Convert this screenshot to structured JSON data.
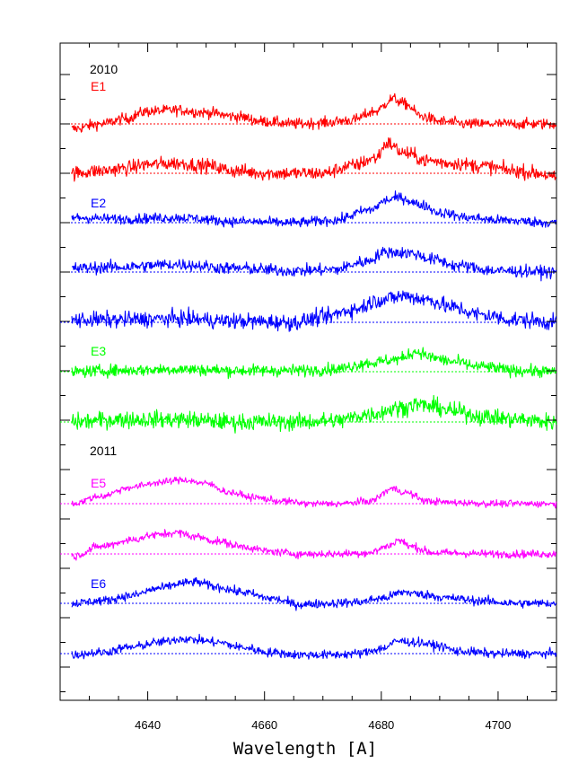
{
  "chart_data": {
    "type": "line",
    "title": "",
    "xlabel": "Wavelength [A]",
    "ylabel": "",
    "xlim": [
      4625,
      4710
    ],
    "x_ticks": [
      4640,
      4660,
      4680,
      4700
    ],
    "grid": false,
    "legend": "none",
    "annotations": [
      {
        "text": "2010",
        "color": "#000000"
      },
      {
        "text": "E1",
        "color": "#ff0000"
      },
      {
        "text": "E2",
        "color": "#0000ff"
      },
      {
        "text": "E3",
        "color": "#00ff00"
      },
      {
        "text": "2011",
        "color": "#000000"
      },
      {
        "text": "E5",
        "color": "#ff00ff"
      },
      {
        "text": "E6",
        "color": "#0000ff"
      }
    ],
    "series": [
      {
        "color": "#ff0000",
        "noise": 0.22,
        "points": [
          [
            4627,
            -0.2
          ],
          [
            4632,
            0.0
          ],
          [
            4636,
            0.2
          ],
          [
            4640,
            0.5
          ],
          [
            4645,
            0.55
          ],
          [
            4650,
            0.45
          ],
          [
            4655,
            0.3
          ],
          [
            4660,
            0.1
          ],
          [
            4665,
            0.0
          ],
          [
            4670,
            0.05
          ],
          [
            4675,
            0.15
          ],
          [
            4679,
            0.5
          ],
          [
            4682,
            1.0
          ],
          [
            4684,
            0.8
          ],
          [
            4687,
            0.3
          ],
          [
            4690,
            0.1
          ],
          [
            4695,
            0.0
          ],
          [
            4700,
            0.0
          ],
          [
            4705,
            0.0
          ],
          [
            4710,
            0.0
          ]
        ]
      },
      {
        "color": "#ff0000",
        "noise": 0.28,
        "points": [
          [
            4627,
            0.0
          ],
          [
            4632,
            0.1
          ],
          [
            4636,
            0.2
          ],
          [
            4640,
            0.35
          ],
          [
            4645,
            0.4
          ],
          [
            4650,
            0.3
          ],
          [
            4655,
            0.1
          ],
          [
            4660,
            0.0
          ],
          [
            4665,
            0.0
          ],
          [
            4670,
            0.0
          ],
          [
            4675,
            0.3
          ],
          [
            4679,
            0.6
          ],
          [
            4681,
            1.2
          ],
          [
            4684,
            0.8
          ],
          [
            4688,
            0.5
          ],
          [
            4692,
            0.4
          ],
          [
            4697,
            0.3
          ],
          [
            4703,
            0.1
          ],
          [
            4707,
            0.0
          ],
          [
            4710,
            -0.2
          ]
        ]
      },
      {
        "color": "#0000ff",
        "noise": 0.2,
        "points": [
          [
            4627,
            0.2
          ],
          [
            4635,
            0.15
          ],
          [
            4645,
            0.2
          ],
          [
            4655,
            0.05
          ],
          [
            4665,
            0.0
          ],
          [
            4672,
            0.1
          ],
          [
            4678,
            0.5
          ],
          [
            4681,
            0.9
          ],
          [
            4683,
            1.0
          ],
          [
            4687,
            0.7
          ],
          [
            4690,
            0.4
          ],
          [
            4695,
            0.2
          ],
          [
            4700,
            0.1
          ],
          [
            4710,
            0.0
          ]
        ]
      },
      {
        "color": "#0000ff",
        "noise": 0.24,
        "points": [
          [
            4627,
            0.15
          ],
          [
            4635,
            0.2
          ],
          [
            4645,
            0.3
          ],
          [
            4655,
            0.15
          ],
          [
            4665,
            0.05
          ],
          [
            4672,
            0.1
          ],
          [
            4677,
            0.4
          ],
          [
            4681,
            0.8
          ],
          [
            4685,
            0.75
          ],
          [
            4689,
            0.5
          ],
          [
            4693,
            0.25
          ],
          [
            4700,
            0.05
          ],
          [
            4710,
            0.0
          ]
        ]
      },
      {
        "color": "#0000ff",
        "noise": 0.32,
        "points": [
          [
            4627,
            0.1
          ],
          [
            4635,
            0.1
          ],
          [
            4645,
            0.15
          ],
          [
            4655,
            0.05
          ],
          [
            4665,
            0.0
          ],
          [
            4670,
            0.2
          ],
          [
            4675,
            0.5
          ],
          [
            4680,
            0.9
          ],
          [
            4684,
            1.05
          ],
          [
            4688,
            0.9
          ],
          [
            4692,
            0.6
          ],
          [
            4697,
            0.3
          ],
          [
            4703,
            0.1
          ],
          [
            4710,
            0.0
          ]
        ]
      },
      {
        "color": "#00ff00",
        "noise": 0.24,
        "points": [
          [
            4627,
            0.0
          ],
          [
            4635,
            0.05
          ],
          [
            4645,
            0.1
          ],
          [
            4655,
            0.05
          ],
          [
            4665,
            0.05
          ],
          [
            4672,
            0.1
          ],
          [
            4678,
            0.35
          ],
          [
            4683,
            0.5
          ],
          [
            4686,
            0.8
          ],
          [
            4689,
            0.55
          ],
          [
            4692,
            0.4
          ],
          [
            4697,
            0.2
          ],
          [
            4703,
            0.05
          ],
          [
            4710,
            0.0
          ]
        ]
      },
      {
        "color": "#00ff00",
        "noise": 0.34,
        "points": [
          [
            4627,
            0.0
          ],
          [
            4635,
            0.1
          ],
          [
            4645,
            0.1
          ],
          [
            4655,
            0.0
          ],
          [
            4665,
            0.0
          ],
          [
            4672,
            0.05
          ],
          [
            4678,
            0.3
          ],
          [
            4683,
            0.55
          ],
          [
            4686,
            0.7
          ],
          [
            4689,
            0.6
          ],
          [
            4693,
            0.4
          ],
          [
            4698,
            0.2
          ],
          [
            4703,
            0.1
          ],
          [
            4710,
            0.0
          ]
        ]
      },
      {
        "color": "#ff00ff",
        "noise": 0.14,
        "points": [
          [
            4627,
            0.0
          ],
          [
            4632,
            0.3
          ],
          [
            4637,
            0.65
          ],
          [
            4642,
            0.85
          ],
          [
            4646,
            0.95
          ],
          [
            4650,
            0.8
          ],
          [
            4654,
            0.45
          ],
          [
            4658,
            0.25
          ],
          [
            4663,
            0.1
          ],
          [
            4668,
            0.0
          ],
          [
            4673,
            0.0
          ],
          [
            4678,
            0.1
          ],
          [
            4682,
            0.6
          ],
          [
            4684,
            0.45
          ],
          [
            4688,
            0.1
          ],
          [
            4692,
            0.05
          ],
          [
            4700,
            0.0
          ],
          [
            4710,
            0.0
          ]
        ]
      },
      {
        "color": "#ff00ff",
        "noise": 0.16,
        "points": [
          [
            4627,
            -0.1
          ],
          [
            4632,
            0.3
          ],
          [
            4637,
            0.55
          ],
          [
            4641,
            0.75
          ],
          [
            4645,
            0.85
          ],
          [
            4648,
            0.7
          ],
          [
            4652,
            0.5
          ],
          [
            4656,
            0.3
          ],
          [
            4661,
            0.1
          ],
          [
            4666,
            0.0
          ],
          [
            4672,
            0.0
          ],
          [
            4678,
            0.05
          ],
          [
            4681,
            0.3
          ],
          [
            4683,
            0.55
          ],
          [
            4685,
            0.3
          ],
          [
            4689,
            0.05
          ],
          [
            4700,
            0.0
          ],
          [
            4710,
            0.0
          ]
        ]
      },
      {
        "color": "#0000ff",
        "noise": 0.18,
        "points": [
          [
            4627,
            0.0
          ],
          [
            4632,
            0.1
          ],
          [
            4637,
            0.3
          ],
          [
            4642,
            0.6
          ],
          [
            4646,
            0.8
          ],
          [
            4648,
            0.85
          ],
          [
            4652,
            0.65
          ],
          [
            4656,
            0.45
          ],
          [
            4661,
            0.2
          ],
          [
            4666,
            -0.05
          ],
          [
            4671,
            0.0
          ],
          [
            4676,
            0.05
          ],
          [
            4680,
            0.2
          ],
          [
            4684,
            0.45
          ],
          [
            4687,
            0.35
          ],
          [
            4692,
            0.2
          ],
          [
            4697,
            0.1
          ],
          [
            4703,
            0.0
          ],
          [
            4710,
            0.0
          ]
        ]
      },
      {
        "color": "#0000ff",
        "noise": 0.18,
        "points": [
          [
            4627,
            -0.05
          ],
          [
            4632,
            0.05
          ],
          [
            4637,
            0.25
          ],
          [
            4642,
            0.45
          ],
          [
            4646,
            0.6
          ],
          [
            4648,
            0.55
          ],
          [
            4652,
            0.45
          ],
          [
            4656,
            0.25
          ],
          [
            4661,
            0.05
          ],
          [
            4666,
            -0.05
          ],
          [
            4671,
            -0.05
          ],
          [
            4676,
            0.0
          ],
          [
            4680,
            0.2
          ],
          [
            4683,
            0.5
          ],
          [
            4686,
            0.45
          ],
          [
            4690,
            0.3
          ],
          [
            4693,
            0.1
          ],
          [
            4700,
            0.0
          ],
          [
            4710,
            0.0
          ]
        ]
      }
    ]
  }
}
